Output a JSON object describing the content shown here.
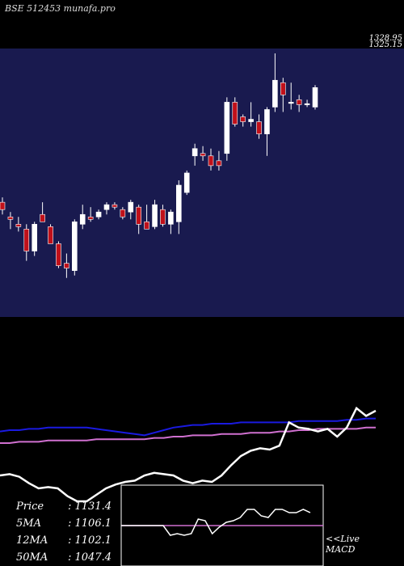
{
  "header": {
    "title": "BSE 512453 munafa.pro"
  },
  "price_labels": [
    "1328.95",
    "1325.15"
  ],
  "colors": {
    "panel_bg": "#191a4f",
    "up": "#ffffff",
    "down": "#c0101a",
    "ma_blue": "#1a1ae0",
    "ma_pink": "#d070d0",
    "white_line": "#ffffff",
    "macd_signal": "#d070d0"
  },
  "chart_data": {
    "type": "candlestick",
    "title": "BSE 512453 munafa.pro",
    "ylim": [
      850,
      1400
    ],
    "candles": [
      {
        "o": 1085,
        "h": 1095,
        "l": 1060,
        "c": 1070
      },
      {
        "o": 1055,
        "h": 1065,
        "l": 1030,
        "c": 1050
      },
      {
        "o": 1040,
        "h": 1055,
        "l": 1025,
        "c": 1035
      },
      {
        "o": 1030,
        "h": 1040,
        "l": 965,
        "c": 985
      },
      {
        "o": 985,
        "h": 1045,
        "l": 975,
        "c": 1040
      },
      {
        "o": 1060,
        "h": 1085,
        "l": 1045,
        "c": 1045
      },
      {
        "o": 1035,
        "h": 1040,
        "l": 1000,
        "c": 1000
      },
      {
        "o": 1000,
        "h": 1005,
        "l": 950,
        "c": 955
      },
      {
        "o": 960,
        "h": 980,
        "l": 930,
        "c": 950
      },
      {
        "o": 945,
        "h": 1050,
        "l": 935,
        "c": 1045
      },
      {
        "o": 1040,
        "h": 1080,
        "l": 1030,
        "c": 1060
      },
      {
        "o": 1055,
        "h": 1075,
        "l": 1045,
        "c": 1050
      },
      {
        "o": 1055,
        "h": 1070,
        "l": 1050,
        "c": 1065
      },
      {
        "o": 1070,
        "h": 1085,
        "l": 1060,
        "c": 1080
      },
      {
        "o": 1080,
        "h": 1085,
        "l": 1070,
        "c": 1075
      },
      {
        "o": 1070,
        "h": 1075,
        "l": 1050,
        "c": 1055
      },
      {
        "o": 1065,
        "h": 1090,
        "l": 1050,
        "c": 1085
      },
      {
        "o": 1075,
        "h": 1080,
        "l": 1020,
        "c": 1040
      },
      {
        "o": 1045,
        "h": 1080,
        "l": 1030,
        "c": 1030
      },
      {
        "o": 1035,
        "h": 1090,
        "l": 1030,
        "c": 1080
      },
      {
        "o": 1070,
        "h": 1080,
        "l": 1035,
        "c": 1040
      },
      {
        "o": 1040,
        "h": 1070,
        "l": 1020,
        "c": 1065
      },
      {
        "o": 1045,
        "h": 1130,
        "l": 1020,
        "c": 1120
      },
      {
        "o": 1105,
        "h": 1150,
        "l": 1100,
        "c": 1145
      },
      {
        "o": 1180,
        "h": 1205,
        "l": 1160,
        "c": 1195
      },
      {
        "o": 1185,
        "h": 1200,
        "l": 1170,
        "c": 1180
      },
      {
        "o": 1180,
        "h": 1195,
        "l": 1150,
        "c": 1160
      },
      {
        "o": 1170,
        "h": 1190,
        "l": 1150,
        "c": 1160
      },
      {
        "o": 1185,
        "h": 1300,
        "l": 1170,
        "c": 1290
      },
      {
        "o": 1290,
        "h": 1300,
        "l": 1240,
        "c": 1245
      },
      {
        "o": 1260,
        "h": 1265,
        "l": 1240,
        "c": 1250
      },
      {
        "o": 1250,
        "h": 1290,
        "l": 1240,
        "c": 1255
      },
      {
        "o": 1250,
        "h": 1265,
        "l": 1215,
        "c": 1225
      },
      {
        "o": 1225,
        "h": 1280,
        "l": 1180,
        "c": 1275
      },
      {
        "o": 1280,
        "h": 1390,
        "l": 1270,
        "c": 1335
      },
      {
        "o": 1330,
        "h": 1340,
        "l": 1270,
        "c": 1305
      },
      {
        "o": 1290,
        "h": 1330,
        "l": 1275,
        "c": 1290
      },
      {
        "o": 1295,
        "h": 1305,
        "l": 1270,
        "c": 1285
      },
      {
        "o": 1285,
        "h": 1295,
        "l": 1280,
        "c": 1287
      },
      {
        "o": 1280,
        "h": 1325,
        "l": 1275,
        "c": 1320
      }
    ],
    "indicator_lines": {
      "blue": [
        0.42,
        0.4,
        0.4,
        0.38,
        0.38,
        0.36,
        0.36,
        0.36,
        0.36,
        0.36,
        0.38,
        0.4,
        0.42,
        0.44,
        0.46,
        0.48,
        0.44,
        0.4,
        0.36,
        0.34,
        0.32,
        0.32,
        0.3,
        0.3,
        0.3,
        0.28,
        0.28,
        0.28,
        0.28,
        0.28,
        0.28,
        0.26,
        0.26,
        0.26,
        0.26,
        0.26,
        0.24,
        0.24,
        0.22,
        0.22
      ],
      "pink": [
        0.6,
        0.6,
        0.58,
        0.58,
        0.58,
        0.56,
        0.56,
        0.56,
        0.56,
        0.56,
        0.54,
        0.54,
        0.54,
        0.54,
        0.54,
        0.54,
        0.52,
        0.52,
        0.5,
        0.5,
        0.48,
        0.48,
        0.48,
        0.46,
        0.46,
        0.46,
        0.44,
        0.44,
        0.44,
        0.42,
        0.42,
        0.4,
        0.4,
        0.38,
        0.38,
        0.38,
        0.38,
        0.38,
        0.36,
        0.36
      ],
      "white": [
        1.1,
        1.08,
        1.12,
        1.22,
        1.3,
        1.28,
        1.3,
        1.42,
        1.5,
        1.5,
        1.4,
        1.3,
        1.24,
        1.2,
        1.18,
        1.1,
        1.06,
        1.08,
        1.1,
        1.18,
        1.22,
        1.18,
        1.2,
        1.1,
        0.94,
        0.8,
        0.72,
        0.68,
        0.7,
        0.64,
        0.28,
        0.36,
        0.38,
        0.42,
        0.38,
        0.5,
        0.36,
        0.06,
        0.18,
        0.1
      ]
    },
    "stats": [
      {
        "label": "Price",
        "value": "1131.4"
      },
      {
        "label": "5MA",
        "value": "1106.1"
      },
      {
        "label": "12MA",
        "value": "1102.1"
      },
      {
        "label": "50MA",
        "value": "1047.4"
      }
    ],
    "macd_label_1": "<<Live",
    "macd_label_2": "MACD",
    "macd_line": [
      0.5,
      0.5,
      0.5,
      0.5,
      0.5,
      0.5,
      0.5,
      0.62,
      0.6,
      0.62,
      0.6,
      0.42,
      0.44,
      0.6,
      0.52,
      0.46,
      0.44,
      0.4,
      0.3,
      0.3,
      0.38,
      0.4,
      0.3,
      0.3,
      0.34,
      0.34,
      0.3,
      0.34
    ]
  }
}
